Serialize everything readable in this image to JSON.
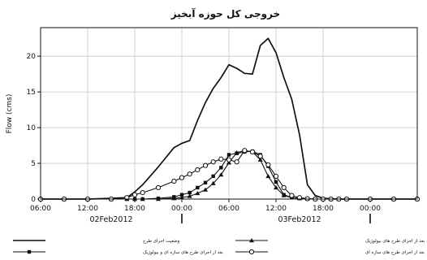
{
  "chart_data": {
    "type": "line",
    "title": "خروجی کل حوزه آبخیز",
    "ylabel": "Flow (cms)",
    "xlabel": "",
    "ylim": [
      0,
      24
    ],
    "yticks": [
      0,
      5,
      10,
      15,
      20
    ],
    "xticks": [
      "06:00",
      "12:00",
      "18:00",
      "00:00",
      "06:00",
      "12:00",
      "18:00",
      "00:00"
    ],
    "date_labels": [
      "02Feb2012",
      "03Feb2012"
    ],
    "grid": true,
    "legend_position": "bottom",
    "x_hours": [
      0,
      3,
      6,
      9,
      11,
      12,
      13,
      15,
      17,
      18,
      19,
      20,
      21,
      22,
      23,
      24,
      25,
      26,
      27,
      28,
      29,
      30,
      31,
      32,
      33,
      34,
      35,
      36,
      37,
      38,
      39,
      42,
      45,
      48
    ],
    "series": [
      {
        "name": "وضعیت اجرای طرح",
        "marker": "none",
        "values": [
          0,
          0,
          0,
          0.1,
          0.2,
          1,
          2,
          4.5,
          7.2,
          7.8,
          8.2,
          11,
          13.5,
          15.5,
          17,
          18.8,
          18.3,
          17.6,
          17.5,
          21.5,
          22.5,
          20.5,
          17,
          14,
          9,
          2,
          0.5,
          0.1,
          0.05,
          0,
          0,
          0,
          0,
          0
        ]
      },
      {
        "name": "بعد از اجرای طرح های سازه ای و بیولوژیک",
        "marker": "filled-square",
        "values": [
          0,
          0,
          0,
          0,
          0,
          0,
          0,
          0.1,
          0.3,
          0.6,
          0.9,
          1.6,
          2.3,
          3.2,
          4.4,
          6.2,
          6.4,
          6.6,
          6.7,
          6.2,
          4.6,
          2.4,
          0.6,
          0.2,
          0.1,
          0.05,
          0,
          0,
          0,
          0,
          0,
          0,
          0,
          0
        ]
      },
      {
        "name": "بعد از اجرای طرح های بیولوژیک",
        "marker": "triangle",
        "values": [
          0,
          0,
          0,
          0,
          0,
          0,
          0,
          0,
          0.1,
          0.2,
          0.4,
          0.8,
          1.3,
          2.2,
          3.4,
          5.1,
          6.5,
          6.8,
          6.6,
          5.5,
          3.2,
          1.6,
          0.5,
          0.2,
          0.1,
          0.05,
          0,
          0,
          0,
          0,
          0,
          0,
          0,
          0
        ]
      },
      {
        "name": "بعد از اجرای طرح های سازه ای",
        "marker": "circle",
        "values": [
          0,
          0,
          0,
          0,
          0.2,
          0.6,
          0.9,
          1.6,
          2.5,
          3,
          3.5,
          4.1,
          4.7,
          5.2,
          5.6,
          5.5,
          5.2,
          6.8,
          6.6,
          6.0,
          4.8,
          3.2,
          1.6,
          0.5,
          0.2,
          0.05,
          0,
          0,
          0,
          0,
          0,
          0,
          0,
          0
        ]
      }
    ]
  }
}
